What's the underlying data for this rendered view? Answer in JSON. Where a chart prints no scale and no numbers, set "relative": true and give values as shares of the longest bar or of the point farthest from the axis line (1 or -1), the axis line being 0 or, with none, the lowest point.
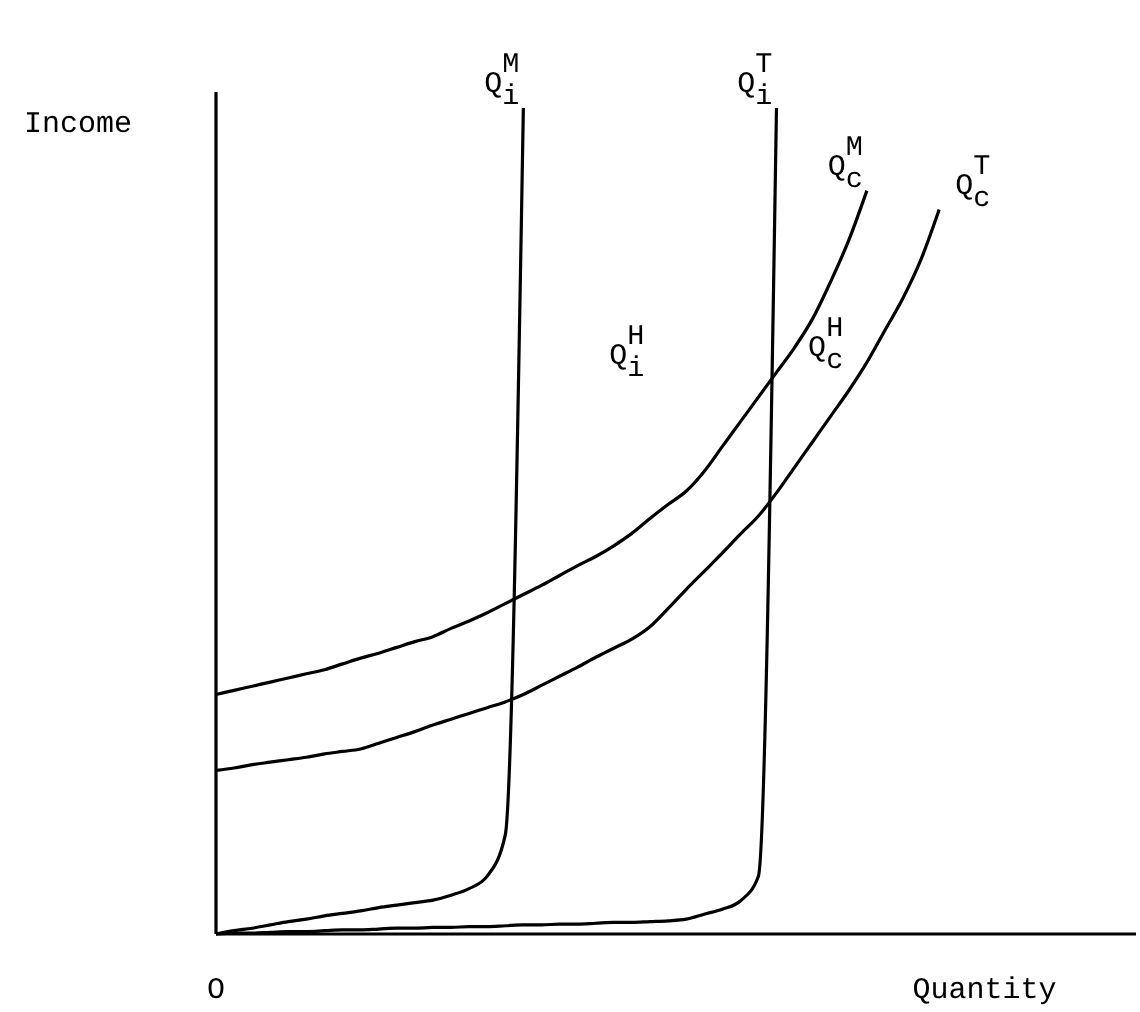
{
  "chart_data": {
    "type": "line",
    "relative": true,
    "xlabel": "Quantity",
    "ylabel": "Income",
    "legend": false,
    "marker": "none",
    "line_style": "solid",
    "categories": [
      null,
      null,
      null,
      null,
      null,
      null,
      null,
      null,
      null,
      null,
      null,
      null,
      null,
      null,
      null,
      null,
      null,
      null,
      null,
      null,
      null,
      null,
      null,
      null,
      null,
      null,
      null,
      null,
      null,
      null,
      null,
      null,
      null,
      null,
      null,
      null,
      null,
      null,
      null,
      null,
      null,
      null,
      null,
      null,
      null,
      null,
      null,
      null,
      null,
      null,
      null
    ],
    "series": [
      {
        "name": "Q$_{i}$$^{M}$",
        "color": "#000000",
        "values": [
          0,
          0.004,
          0.007,
          0.011,
          0.015,
          0.018,
          0.022,
          0.025,
          0.028,
          0.032,
          0.035,
          0.038,
          0.041,
          0.047,
          0.055,
          0.07,
          0.12,
          1,
          null,
          null,
          null,
          null,
          null,
          null,
          null,
          null,
          null,
          null,
          null,
          null,
          null,
          null,
          null,
          null,
          null,
          null,
          null,
          null,
          null,
          null,
          null,
          null,
          null,
          null,
          null,
          null,
          null,
          null,
          null,
          null,
          null
        ]
      },
      {
        "name": "Q$_{i}$$^{T}$",
        "color": "#000000",
        "values": [
          0,
          0.001,
          0.001,
          0.002,
          0.003,
          0.003,
          0.004,
          0.005,
          0.005,
          0.006,
          0.007,
          0.007,
          0.008,
          0.008,
          0.009,
          0.009,
          0.01,
          0.011,
          0.011,
          0.012,
          0.012,
          0.013,
          0.014,
          0.014,
          0.015,
          0.016,
          0.018,
          0.024,
          0.03,
          0.04,
          0.07,
          1,
          null,
          null,
          null,
          null,
          null,
          null,
          null,
          null,
          null,
          null,
          null,
          null,
          null,
          null,
          null,
          null,
          null,
          null,
          null
        ]
      },
      {
        "name": "Q$_{c}$$^{M}$",
        "color": "#000000",
        "values": [
          0.29,
          0.295,
          0.3,
          0.305,
          0.31,
          0.315,
          0.32,
          0.327,
          0.334,
          0.34,
          0.347,
          0.354,
          0.36,
          0.37,
          0.379,
          0.389,
          0.4,
          0.411,
          0.422,
          0.434,
          0.446,
          0.457,
          0.47,
          0.485,
          0.503,
          0.52,
          0.536,
          0.56,
          0.59,
          0.62,
          0.65,
          0.68,
          0.71,
          0.745,
          0.79,
          0.84,
          0.9,
          null,
          null,
          null,
          null,
          null,
          null,
          null,
          null,
          null,
          null,
          null,
          null,
          null,
          null
        ]
      },
      {
        "name": "Q$_{c}$$^{T}$",
        "color": "#000000",
        "values": [
          0.198,
          0.201,
          0.205,
          0.208,
          0.211,
          0.214,
          0.218,
          0.221,
          0.224,
          0.231,
          0.238,
          0.245,
          0.253,
          0.26,
          0.267,
          0.274,
          0.281,
          0.29,
          0.301,
          0.312,
          0.323,
          0.335,
          0.346,
          0.357,
          0.372,
          0.394,
          0.417,
          0.439,
          0.461,
          0.484,
          0.506,
          0.534,
          0.565,
          0.596,
          0.627,
          0.658,
          0.692,
          0.731,
          0.77,
          0.817,
          0.877,
          null,
          null,
          null,
          null,
          null,
          null,
          null,
          null,
          null,
          null
        ]
      }
    ],
    "annotations": [
      "Q$_{i}$$^{H}$",
      "Q$_{c}$$^{H}$",
      "O"
    ]
  }
}
